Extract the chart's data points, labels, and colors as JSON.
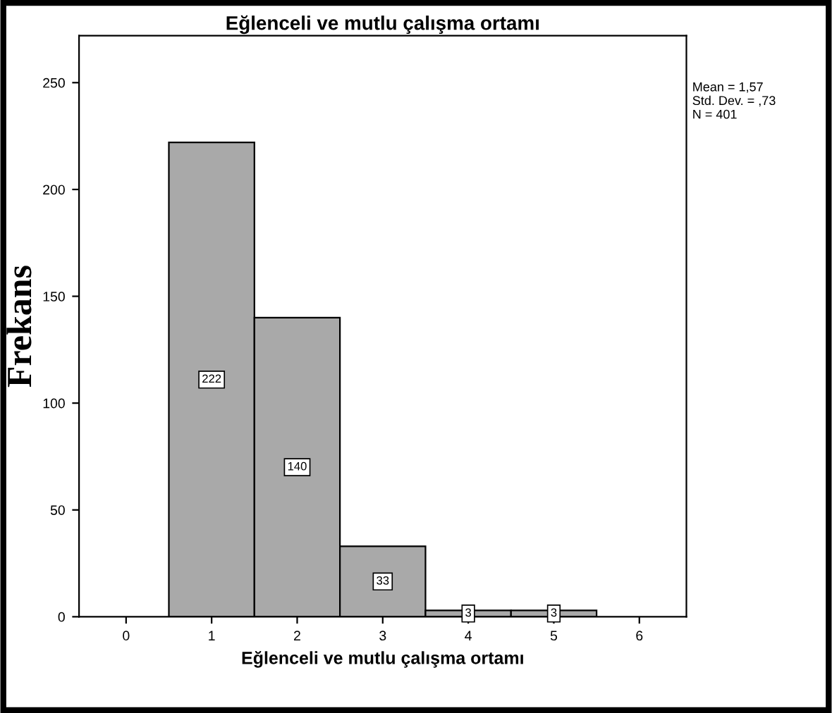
{
  "chart_data": {
    "type": "histogram",
    "title": "Eğlenceli ve mutlu çalışma ortamı",
    "xlabel": "Eğlenceli ve mutlu çalışma ortamı",
    "ylabel": "Frekans",
    "bins": [
      0.5,
      1.5,
      2.5,
      3.5,
      4.5,
      5.5
    ],
    "values": [
      222,
      140,
      33,
      3,
      3
    ],
    "color": "#a9a9a9",
    "xlim": [
      -0.55,
      6.55
    ],
    "xticks": [
      0,
      1,
      2,
      3,
      4,
      5,
      6
    ],
    "ylim": [
      0,
      272
    ],
    "yticks": [
      0,
      50,
      100,
      150,
      200,
      250
    ],
    "data_labels": true,
    "grid": false,
    "legend": false,
    "annotations": [
      "Mean = 1,57",
      "Std. Dev. = ,73",
      "N = 401"
    ]
  }
}
